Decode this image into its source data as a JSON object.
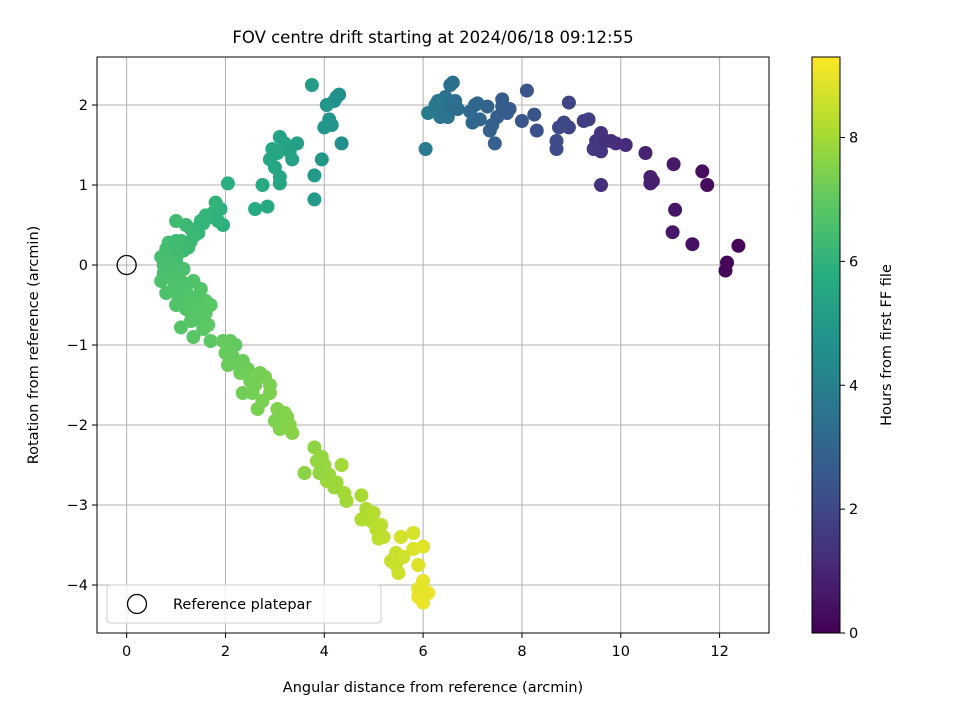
{
  "chart_data": {
    "type": "scatter",
    "title": "FOV centre drift starting at 2024/06/18 09:12:55",
    "xlabel": "Angular distance from reference (arcmin)",
    "ylabel": "Rotation from reference (arcmin)",
    "xlim": [
      -0.6,
      13.0
    ],
    "ylim": [
      -4.6,
      2.6
    ],
    "x_ticks": [
      0,
      2,
      4,
      6,
      8,
      10,
      12
    ],
    "x_tick_labels": [
      "0",
      "2",
      "4",
      "6",
      "8",
      "10",
      "12"
    ],
    "y_ticks": [
      -4,
      -3,
      -2,
      -1,
      0,
      1,
      2
    ],
    "y_tick_labels": [
      "−4",
      "−3",
      "−2",
      "−1",
      "0",
      "1",
      "2"
    ],
    "grid": true,
    "legend": {
      "placement": "lower-left",
      "entries": [
        "Reference platepar"
      ]
    },
    "reference_point": {
      "x": 0,
      "y": 0
    },
    "colorbar": {
      "label": "Hours from first FF file",
      "range": [
        0,
        9.3
      ],
      "ticks": [
        0,
        2,
        4,
        6,
        8
      ],
      "tick_labels": [
        "0",
        "2",
        "4",
        "6",
        "8"
      ],
      "colormap": "viridis"
    },
    "points": [
      [
        12.38,
        0.24,
        0.05
      ],
      [
        12.15,
        0.03,
        0.1
      ],
      [
        12.12,
        -0.07,
        0.15
      ],
      [
        11.75,
        1.0,
        0.3
      ],
      [
        11.65,
        1.17,
        0.35
      ],
      [
        11.45,
        0.26,
        0.45
      ],
      [
        11.1,
        0.69,
        0.55
      ],
      [
        11.05,
        0.41,
        0.6
      ],
      [
        11.07,
        1.26,
        0.65
      ],
      [
        10.6,
        1.1,
        0.8
      ],
      [
        10.6,
        1.02,
        0.85
      ],
      [
        10.5,
        1.4,
        0.9
      ],
      [
        9.9,
        1.52,
        1.2
      ],
      [
        9.8,
        1.55,
        1.25
      ],
      [
        9.6,
        1.0,
        1.35
      ],
      [
        9.6,
        1.65,
        1.4
      ],
      [
        9.6,
        1.42,
        1.45
      ],
      [
        9.5,
        1.55,
        1.5
      ],
      [
        9.45,
        1.45,
        1.55
      ],
      [
        9.35,
        1.82,
        1.7
      ],
      [
        8.95,
        2.03,
        1.9
      ],
      [
        8.95,
        1.72,
        1.95
      ],
      [
        8.85,
        1.78,
        2.0
      ],
      [
        8.75,
        1.72,
        2.05
      ],
      [
        8.7,
        1.55,
        2.1
      ],
      [
        8.7,
        1.45,
        2.15
      ],
      [
        8.3,
        1.68,
        2.3
      ],
      [
        8.25,
        1.88,
        2.35
      ],
      [
        8.1,
        2.18,
        2.45
      ],
      [
        7.75,
        1.95,
        2.6
      ],
      [
        7.7,
        1.9,
        2.65
      ],
      [
        7.6,
        2.07,
        2.7
      ],
      [
        7.5,
        1.85,
        2.75
      ],
      [
        7.45,
        1.52,
        2.8
      ],
      [
        7.4,
        1.75,
        2.85
      ],
      [
        7.35,
        1.68,
        2.9
      ],
      [
        7.3,
        1.98,
        2.95
      ],
      [
        7.15,
        1.82,
        3.0
      ],
      [
        7.1,
        2.02,
        3.05
      ],
      [
        7.0,
        1.78,
        3.1
      ],
      [
        6.95,
        1.92,
        3.15
      ],
      [
        6.65,
        2.05,
        3.3
      ],
      [
        6.6,
        2.0,
        3.35
      ],
      [
        6.55,
        2.25,
        3.4
      ],
      [
        6.5,
        1.85,
        3.45
      ],
      [
        6.45,
        2.1,
        3.5
      ],
      [
        6.4,
        1.95,
        3.55
      ],
      [
        6.35,
        1.85,
        3.6
      ],
      [
        6.3,
        2.05,
        3.65
      ],
      [
        6.25,
        2.0,
        3.7
      ],
      [
        6.1,
        1.9,
        3.8
      ],
      [
        6.05,
        1.45,
        3.85
      ],
      [
        4.35,
        1.52,
        4.6
      ],
      [
        4.3,
        2.13,
        4.65
      ],
      [
        4.2,
        2.05,
        4.7
      ],
      [
        4.15,
        1.75,
        4.75
      ],
      [
        4.1,
        1.82,
        4.8
      ],
      [
        4.05,
        2.0,
        4.85
      ],
      [
        4.0,
        1.72,
        4.9
      ],
      [
        3.95,
        1.32,
        4.95
      ],
      [
        3.8,
        1.12,
        5.0
      ],
      [
        3.8,
        0.82,
        5.05
      ],
      [
        3.75,
        2.25,
        5.1
      ],
      [
        3.45,
        1.52,
        5.2
      ],
      [
        3.35,
        1.32,
        5.25
      ],
      [
        3.25,
        1.45,
        5.3
      ],
      [
        3.1,
        1.6,
        5.35
      ],
      [
        3.1,
        1.02,
        5.4
      ],
      [
        3.0,
        1.22,
        5.45
      ],
      [
        2.95,
        1.45,
        5.5
      ],
      [
        2.9,
        1.32,
        5.55
      ],
      [
        2.85,
        0.73,
        5.6
      ],
      [
        2.75,
        1.0,
        5.65
      ],
      [
        2.6,
        0.7,
        5.7
      ],
      [
        1.95,
        0.5,
        5.9
      ],
      [
        1.9,
        0.7,
        5.95
      ],
      [
        1.8,
        0.78,
        6.0
      ],
      [
        1.7,
        0.6,
        6.05
      ],
      [
        1.5,
        0.55,
        6.1
      ],
      [
        1.4,
        0.38,
        6.15
      ],
      [
        1.3,
        0.45,
        6.2
      ],
      [
        1.2,
        0.5,
        6.25
      ],
      [
        1.1,
        0.3,
        6.3
      ],
      [
        1.0,
        0.55,
        6.35
      ],
      [
        0.95,
        0.2,
        6.4
      ],
      [
        0.85,
        0.28,
        6.45
      ],
      [
        0.8,
        0.1,
        6.5
      ],
      [
        0.75,
        0.0,
        6.55
      ],
      [
        0.7,
        -0.2,
        6.6
      ],
      [
        0.8,
        -0.35,
        6.65
      ],
      [
        1.0,
        -0.5,
        6.7
      ],
      [
        1.1,
        -0.78,
        6.75
      ],
      [
        1.4,
        -0.65,
        6.8
      ],
      [
        1.35,
        -0.9,
        6.85
      ],
      [
        1.6,
        -0.45,
        6.9
      ],
      [
        1.7,
        -0.95,
        6.95
      ],
      [
        2.05,
        1.02,
        5.8
      ],
      [
        2.1,
        -0.95,
        7.05
      ],
      [
        2.0,
        -1.1,
        7.1
      ],
      [
        2.05,
        -1.25,
        7.15
      ],
      [
        2.3,
        -1.35,
        7.2
      ],
      [
        2.35,
        -1.6,
        7.25
      ],
      [
        2.6,
        -1.5,
        7.3
      ],
      [
        2.65,
        -1.8,
        7.35
      ],
      [
        2.8,
        -1.4,
        7.4
      ],
      [
        3.0,
        -1.95,
        7.45
      ],
      [
        3.1,
        -2.05,
        7.5
      ],
      [
        3.2,
        -1.85,
        7.55
      ],
      [
        3.35,
        -2.1,
        7.6
      ],
      [
        3.6,
        -2.6,
        7.65
      ],
      [
        3.8,
        -2.28,
        7.7
      ],
      [
        3.85,
        -2.45,
        7.75
      ],
      [
        4.0,
        -2.5,
        7.8
      ],
      [
        4.1,
        -2.62,
        7.85
      ],
      [
        4.25,
        -2.72,
        7.9
      ],
      [
        4.35,
        -2.5,
        7.95
      ],
      [
        4.4,
        -2.85,
        8.0
      ],
      [
        4.75,
        -2.88,
        8.1
      ],
      [
        4.75,
        -3.18,
        8.15
      ],
      [
        4.95,
        -3.2,
        8.2
      ],
      [
        5.05,
        -3.3,
        8.3
      ],
      [
        5.1,
        -3.42,
        8.35
      ],
      [
        5.2,
        -3.4,
        8.4
      ],
      [
        5.35,
        -3.7,
        8.5
      ],
      [
        5.45,
        -3.6,
        8.55
      ],
      [
        5.5,
        -3.85,
        8.6
      ],
      [
        5.55,
        -3.4,
        8.7
      ],
      [
        5.8,
        -3.35,
        8.75
      ],
      [
        5.8,
        -3.55,
        8.8
      ],
      [
        5.9,
        -3.75,
        8.85
      ],
      [
        6.0,
        -3.52,
        8.9
      ],
      [
        6.0,
        -3.95,
        8.95
      ],
      [
        5.9,
        -4.15,
        9.0
      ],
      [
        6.0,
        -4.22,
        9.05
      ],
      [
        6.1,
        -4.1,
        9.1
      ],
      [
        6.6,
        2.28,
        3.38
      ],
      [
        6.5,
        1.98,
        3.48
      ],
      [
        6.7,
        1.95,
        3.32
      ],
      [
        7.05,
        2.0,
        3.08
      ],
      [
        7.6,
        1.98,
        2.68
      ],
      [
        8.0,
        1.8,
        2.5
      ],
      [
        9.25,
        1.8,
        1.72
      ],
      [
        9.7,
        1.55,
        1.3
      ],
      [
        10.1,
        1.5,
        1.1
      ],
      [
        10.65,
        1.05,
        0.82
      ],
      [
        1.45,
        0.4,
        6.18
      ],
      [
        1.55,
        0.52,
        6.12
      ],
      [
        1.75,
        0.65,
        6.02
      ],
      [
        1.85,
        0.55,
        5.98
      ],
      [
        1.6,
        0.62,
        6.08
      ],
      [
        1.15,
        0.18,
        6.3
      ],
      [
        1.0,
        0.05,
        6.42
      ],
      [
        0.9,
        -0.05,
        6.48
      ],
      [
        0.85,
        -0.15,
        6.58
      ],
      [
        0.95,
        -0.3,
        6.62
      ],
      [
        1.05,
        -0.4,
        6.68
      ],
      [
        1.2,
        -0.55,
        6.72
      ],
      [
        1.3,
        -0.6,
        6.78
      ],
      [
        1.5,
        -0.7,
        6.82
      ],
      [
        1.55,
        -0.8,
        6.88
      ],
      [
        1.2,
        -0.3,
        6.7
      ],
      [
        1.25,
        -0.45,
        6.74
      ],
      [
        1.45,
        -0.55,
        6.79
      ],
      [
        1.7,
        -0.5,
        6.88
      ],
      [
        1.65,
        -0.75,
        6.92
      ],
      [
        2.2,
        -1.0,
        7.02
      ],
      [
        2.15,
        -1.15,
        7.08
      ],
      [
        2.25,
        -1.25,
        7.14
      ],
      [
        2.45,
        -1.3,
        7.22
      ],
      [
        2.55,
        -1.6,
        7.28
      ],
      [
        2.7,
        -1.35,
        7.32
      ],
      [
        2.9,
        -1.5,
        7.38
      ],
      [
        2.75,
        -1.7,
        7.36
      ],
      [
        3.05,
        -1.8,
        7.48
      ],
      [
        3.25,
        -1.9,
        7.52
      ],
      [
        3.3,
        -2.0,
        7.58
      ],
      [
        3.9,
        -2.6,
        7.72
      ],
      [
        3.95,
        -2.4,
        7.76
      ],
      [
        4.05,
        -2.7,
        7.84
      ],
      [
        4.2,
        -2.78,
        7.9
      ],
      [
        4.45,
        -2.95,
        7.98
      ],
      [
        4.85,
        -3.05,
        8.12
      ],
      [
        5.0,
        -3.1,
        8.22
      ],
      [
        5.15,
        -3.25,
        8.32
      ],
      [
        5.45,
        -3.75,
        8.52
      ],
      [
        5.6,
        -3.65,
        8.62
      ],
      [
        5.9,
        -4.05,
        8.92
      ],
      [
        6.05,
        -4.12,
        9.02
      ],
      [
        0.8,
        0.2,
        6.44
      ],
      [
        0.75,
        -0.1,
        6.56
      ],
      [
        0.7,
        0.1,
        6.5
      ],
      [
        0.9,
        0.1,
        6.46
      ],
      [
        1.05,
        0.15,
        6.38
      ],
      [
        1.3,
        0.3,
        6.24
      ],
      [
        1.25,
        0.22,
        6.27
      ],
      [
        1.35,
        -0.2,
        6.66
      ],
      [
        1.4,
        -0.4,
        6.73
      ],
      [
        1.5,
        -0.3,
        6.76
      ],
      [
        1.6,
        -0.6,
        6.84
      ],
      [
        1.3,
        -0.7,
        6.8
      ],
      [
        3.1,
        1.1,
        5.42
      ],
      [
        3.05,
        1.4,
        5.5
      ],
      [
        3.2,
        1.52,
        5.36
      ],
      [
        3.3,
        1.42,
        5.3
      ],
      [
        4.25,
        2.1,
        4.66
      ],
      [
        2.9,
        -1.6,
        7.42
      ],
      [
        2.5,
        -1.45,
        7.26
      ],
      [
        2.35,
        -1.2,
        7.18
      ],
      [
        1.95,
        -0.95,
        7.06
      ],
      [
        2.05,
        -1.05,
        7.1
      ],
      [
        0.9,
        0.0,
        6.52
      ],
      [
        0.95,
        -0.15,
        6.6
      ],
      [
        1.1,
        -0.2,
        6.64
      ],
      [
        1.15,
        -0.05,
        6.56
      ],
      [
        1.0,
        0.3,
        6.36
      ]
    ]
  }
}
